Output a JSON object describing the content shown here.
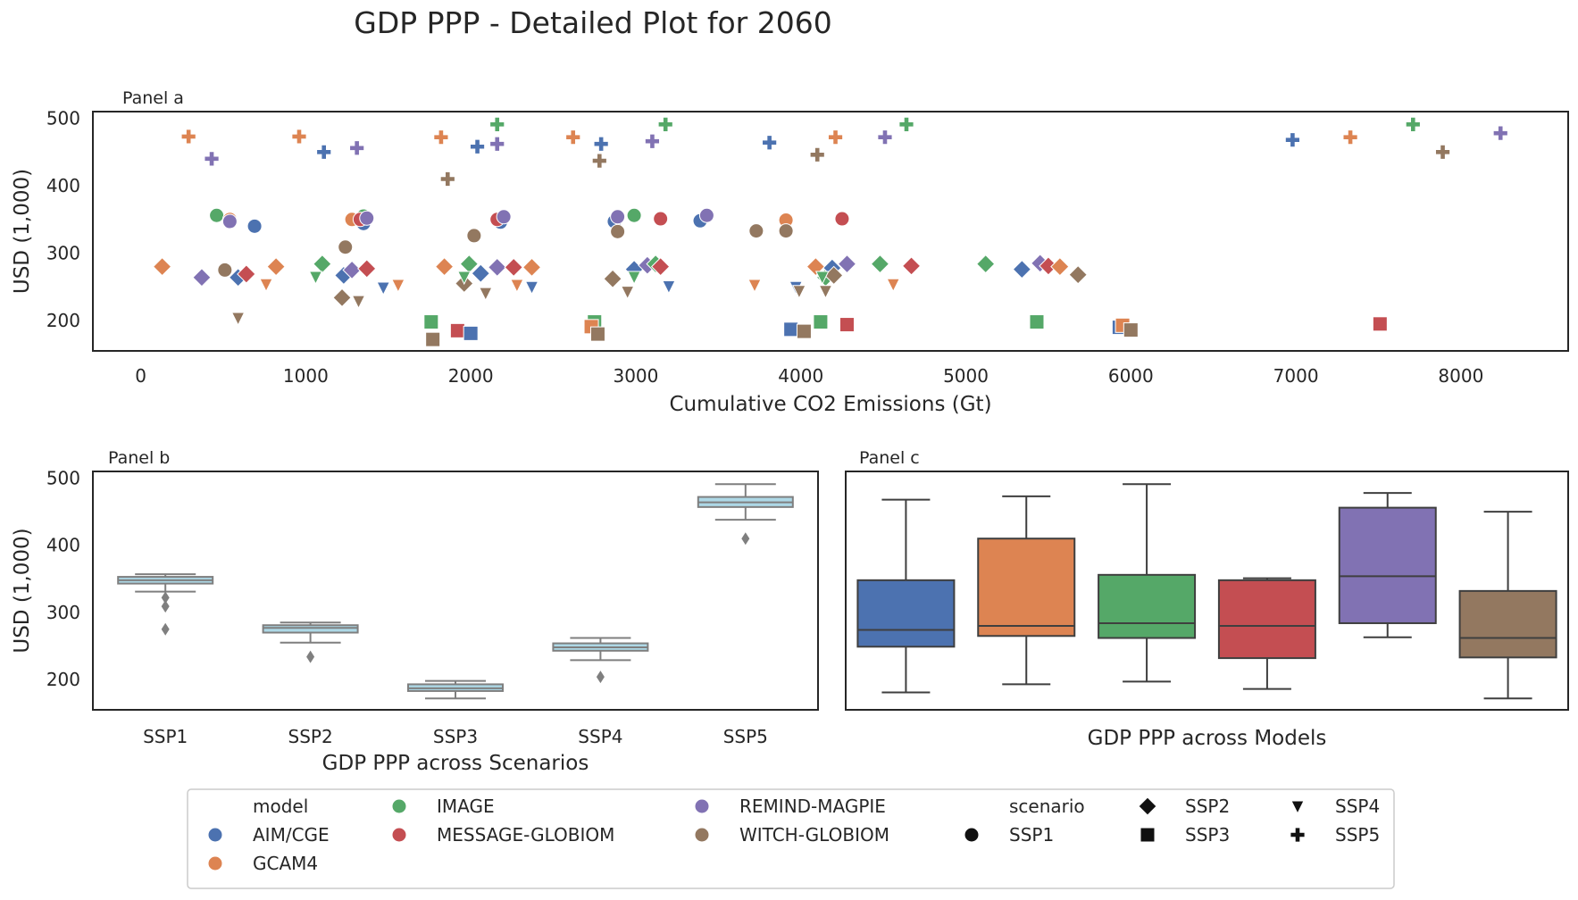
{
  "figure": {
    "suptitle": "GDP PPP - Detailed Plot for 2060"
  },
  "colors": {
    "AIM/CGE": "#4c72b0",
    "GCAM4": "#dd8452",
    "IMAGE": "#55a868",
    "MESSAGE-GLOBIOM": "#c44e52",
    "REMIND-MAGPIE": "#8172b3",
    "WITCH-GLOBIOM": "#937860",
    "scenario_box": "#add8e6",
    "box_line": "#7f7f7f",
    "model_box_line": "#3f3f3f",
    "axes": "#262626"
  },
  "chart_data": [
    {
      "id": "panel_a",
      "type": "scatter",
      "title": "Panel a",
      "xlabel": "Cumulative CO2 Emissions (Gt)",
      "ylabel": "USD (1,000)",
      "xlim": [
        -290,
        8650
      ],
      "ylim": [
        155,
        510
      ],
      "xticks": [
        0,
        1000,
        2000,
        3000,
        4000,
        5000,
        6000,
        7000,
        8000
      ],
      "yticks": [
        200,
        300,
        400,
        500
      ],
      "grid": false,
      "points": [
        {
          "model": "GCAM4",
          "scenario": "SSP5",
          "x": 290,
          "y": 473
        },
        {
          "model": "REMIND-MAGPIE",
          "scenario": "SSP5",
          "x": 430,
          "y": 440
        },
        {
          "model": "GCAM4",
          "scenario": "SSP5",
          "x": 960,
          "y": 473
        },
        {
          "model": "AIM/CGE",
          "scenario": "SSP5",
          "x": 1110,
          "y": 450
        },
        {
          "model": "REMIND-MAGPIE",
          "scenario": "SSP5",
          "x": 1310,
          "y": 456
        },
        {
          "model": "GCAM4",
          "scenario": "SSP5",
          "x": 1820,
          "y": 472
        },
        {
          "model": "WITCH-GLOBIOM",
          "scenario": "SSP5",
          "x": 1860,
          "y": 410
        },
        {
          "model": "IMAGE",
          "scenario": "SSP5",
          "x": 2160,
          "y": 491
        },
        {
          "model": "AIM/CGE",
          "scenario": "SSP5",
          "x": 2040,
          "y": 458
        },
        {
          "model": "REMIND-MAGPIE",
          "scenario": "SSP5",
          "x": 2160,
          "y": 462
        },
        {
          "model": "GCAM4",
          "scenario": "SSP5",
          "x": 2620,
          "y": 472
        },
        {
          "model": "AIM/CGE",
          "scenario": "SSP5",
          "x": 2790,
          "y": 462
        },
        {
          "model": "WITCH-GLOBIOM",
          "scenario": "SSP5",
          "x": 2780,
          "y": 437
        },
        {
          "model": "IMAGE",
          "scenario": "SSP5",
          "x": 3180,
          "y": 491
        },
        {
          "model": "REMIND-MAGPIE",
          "scenario": "SSP5",
          "x": 3100,
          "y": 466
        },
        {
          "model": "AIM/CGE",
          "scenario": "SSP5",
          "x": 3810,
          "y": 464
        },
        {
          "model": "WITCH-GLOBIOM",
          "scenario": "SSP5",
          "x": 4100,
          "y": 446
        },
        {
          "model": "GCAM4",
          "scenario": "SSP5",
          "x": 4210,
          "y": 472
        },
        {
          "model": "REMIND-MAGPIE",
          "scenario": "SSP5",
          "x": 4510,
          "y": 472
        },
        {
          "model": "IMAGE",
          "scenario": "SSP5",
          "x": 4640,
          "y": 491
        },
        {
          "model": "AIM/CGE",
          "scenario": "SSP5",
          "x": 6980,
          "y": 468
        },
        {
          "model": "GCAM4",
          "scenario": "SSP5",
          "x": 7330,
          "y": 472
        },
        {
          "model": "IMAGE",
          "scenario": "SSP5",
          "x": 7710,
          "y": 491
        },
        {
          "model": "WITCH-GLOBIOM",
          "scenario": "SSP5",
          "x": 7890,
          "y": 450
        },
        {
          "model": "REMIND-MAGPIE",
          "scenario": "SSP5",
          "x": 8240,
          "y": 478
        },
        {
          "model": "IMAGE",
          "scenario": "SSP1",
          "x": 460,
          "y": 356
        },
        {
          "model": "GCAM4",
          "scenario": "SSP1",
          "x": 540,
          "y": 350
        },
        {
          "model": "REMIND-MAGPIE",
          "scenario": "SSP1",
          "x": 540,
          "y": 347
        },
        {
          "model": "AIM/CGE",
          "scenario": "SSP1",
          "x": 690,
          "y": 340
        },
        {
          "model": "WITCH-GLOBIOM",
          "scenario": "SSP1",
          "x": 510,
          "y": 275
        },
        {
          "model": "IMAGE",
          "scenario": "SSP1",
          "x": 1350,
          "y": 355
        },
        {
          "model": "GCAM4",
          "scenario": "SSP1",
          "x": 1280,
          "y": 350
        },
        {
          "model": "AIM/CGE",
          "scenario": "SSP1",
          "x": 1350,
          "y": 344
        },
        {
          "model": "MESSAGE-GLOBIOM",
          "scenario": "SSP1",
          "x": 1330,
          "y": 350
        },
        {
          "model": "REMIND-MAGPIE",
          "scenario": "SSP1",
          "x": 1370,
          "y": 352
        },
        {
          "model": "WITCH-GLOBIOM",
          "scenario": "SSP1",
          "x": 1240,
          "y": 309
        },
        {
          "model": "WITCH-GLOBIOM",
          "scenario": "SSP1",
          "x": 2020,
          "y": 326
        },
        {
          "model": "AIM/CGE",
          "scenario": "SSP1",
          "x": 2180,
          "y": 346
        },
        {
          "model": "MESSAGE-GLOBIOM",
          "scenario": "SSP1",
          "x": 2160,
          "y": 350
        },
        {
          "model": "REMIND-MAGPIE",
          "scenario": "SSP1",
          "x": 2200,
          "y": 354
        },
        {
          "model": "AIM/CGE",
          "scenario": "SSP1",
          "x": 2870,
          "y": 347
        },
        {
          "model": "REMIND-MAGPIE",
          "scenario": "SSP1",
          "x": 2890,
          "y": 354
        },
        {
          "model": "IMAGE",
          "scenario": "SSP1",
          "x": 2990,
          "y": 356
        },
        {
          "model": "WITCH-GLOBIOM",
          "scenario": "SSP1",
          "x": 2890,
          "y": 332
        },
        {
          "model": "MESSAGE-GLOBIOM",
          "scenario": "SSP1",
          "x": 3150,
          "y": 351
        },
        {
          "model": "AIM/CGE",
          "scenario": "SSP1",
          "x": 3390,
          "y": 348
        },
        {
          "model": "REMIND-MAGPIE",
          "scenario": "SSP1",
          "x": 3430,
          "y": 356
        },
        {
          "model": "WITCH-GLOBIOM",
          "scenario": "SSP1",
          "x": 3730,
          "y": 333
        },
        {
          "model": "GCAM4",
          "scenario": "SSP1",
          "x": 3910,
          "y": 349
        },
        {
          "model": "WITCH-GLOBIOM",
          "scenario": "SSP1",
          "x": 3910,
          "y": 333
        },
        {
          "model": "MESSAGE-GLOBIOM",
          "scenario": "SSP1",
          "x": 4250,
          "y": 351
        },
        {
          "model": "GCAM4",
          "scenario": "SSP2",
          "x": 130,
          "y": 280
        },
        {
          "model": "REMIND-MAGPIE",
          "scenario": "SSP2",
          "x": 370,
          "y": 264
        },
        {
          "model": "AIM/CGE",
          "scenario": "SSP2",
          "x": 590,
          "y": 264
        },
        {
          "model": "MESSAGE-GLOBIOM",
          "scenario": "SSP2",
          "x": 640,
          "y": 269
        },
        {
          "model": "GCAM4",
          "scenario": "SSP2",
          "x": 820,
          "y": 280
        },
        {
          "model": "IMAGE",
          "scenario": "SSP2",
          "x": 1100,
          "y": 284
        },
        {
          "model": "AIM/CGE",
          "scenario": "SSP2",
          "x": 1230,
          "y": 267
        },
        {
          "model": "REMIND-MAGPIE",
          "scenario": "SSP2",
          "x": 1280,
          "y": 275
        },
        {
          "model": "MESSAGE-GLOBIOM",
          "scenario": "SSP2",
          "x": 1370,
          "y": 277
        },
        {
          "model": "WITCH-GLOBIOM",
          "scenario": "SSP2",
          "x": 1220,
          "y": 234
        },
        {
          "model": "GCAM4",
          "scenario": "SSP2",
          "x": 1840,
          "y": 280
        },
        {
          "model": "WITCH-GLOBIOM",
          "scenario": "SSP2",
          "x": 1960,
          "y": 255
        },
        {
          "model": "IMAGE",
          "scenario": "SSP2",
          "x": 1990,
          "y": 284
        },
        {
          "model": "AIM/CGE",
          "scenario": "SSP2",
          "x": 2060,
          "y": 270
        },
        {
          "model": "REMIND-MAGPIE",
          "scenario": "SSP2",
          "x": 2160,
          "y": 279
        },
        {
          "model": "MESSAGE-GLOBIOM",
          "scenario": "SSP2",
          "x": 2260,
          "y": 279
        },
        {
          "model": "GCAM4",
          "scenario": "SSP2",
          "x": 2370,
          "y": 279
        },
        {
          "model": "WITCH-GLOBIOM",
          "scenario": "SSP2",
          "x": 2860,
          "y": 262
        },
        {
          "model": "AIM/CGE",
          "scenario": "SSP2",
          "x": 2990,
          "y": 276
        },
        {
          "model": "REMIND-MAGPIE",
          "scenario": "SSP2",
          "x": 3070,
          "y": 282
        },
        {
          "model": "IMAGE",
          "scenario": "SSP2",
          "x": 3120,
          "y": 284
        },
        {
          "model": "MESSAGE-GLOBIOM",
          "scenario": "SSP2",
          "x": 3150,
          "y": 280
        },
        {
          "model": "GCAM4",
          "scenario": "SSP2",
          "x": 4090,
          "y": 280
        },
        {
          "model": "IMAGE",
          "scenario": "SSP2",
          "x": 4150,
          "y": 264
        },
        {
          "model": "AIM/CGE",
          "scenario": "SSP2",
          "x": 4190,
          "y": 278
        },
        {
          "model": "WITCH-GLOBIOM",
          "scenario": "SSP2",
          "x": 4200,
          "y": 267
        },
        {
          "model": "REMIND-MAGPIE",
          "scenario": "SSP2",
          "x": 4280,
          "y": 284
        },
        {
          "model": "IMAGE",
          "scenario": "SSP2",
          "x": 4480,
          "y": 284
        },
        {
          "model": "MESSAGE-GLOBIOM",
          "scenario": "SSP2",
          "x": 4670,
          "y": 281
        },
        {
          "model": "IMAGE",
          "scenario": "SSP2",
          "x": 5120,
          "y": 284
        },
        {
          "model": "AIM/CGE",
          "scenario": "SSP2",
          "x": 5340,
          "y": 276
        },
        {
          "model": "REMIND-MAGPIE",
          "scenario": "SSP2",
          "x": 5450,
          "y": 285
        },
        {
          "model": "MESSAGE-GLOBIOM",
          "scenario": "SSP2",
          "x": 5500,
          "y": 281
        },
        {
          "model": "GCAM4",
          "scenario": "SSP2",
          "x": 5570,
          "y": 280
        },
        {
          "model": "WITCH-GLOBIOM",
          "scenario": "SSP2",
          "x": 5680,
          "y": 268
        },
        {
          "model": "IMAGE",
          "scenario": "SSP3",
          "x": 1760,
          "y": 198
        },
        {
          "model": "WITCH-GLOBIOM",
          "scenario": "SSP3",
          "x": 1770,
          "y": 172
        },
        {
          "model": "MESSAGE-GLOBIOM",
          "scenario": "SSP3",
          "x": 1920,
          "y": 185
        },
        {
          "model": "AIM/CGE",
          "scenario": "SSP3",
          "x": 2000,
          "y": 181
        },
        {
          "model": "IMAGE",
          "scenario": "SSP3",
          "x": 2750,
          "y": 198
        },
        {
          "model": "GCAM4",
          "scenario": "SSP3",
          "x": 2730,
          "y": 191
        },
        {
          "model": "WITCH-GLOBIOM",
          "scenario": "SSP3",
          "x": 2770,
          "y": 180
        },
        {
          "model": "AIM/CGE",
          "scenario": "SSP3",
          "x": 3940,
          "y": 187
        },
        {
          "model": "WITCH-GLOBIOM",
          "scenario": "SSP3",
          "x": 4020,
          "y": 184
        },
        {
          "model": "IMAGE",
          "scenario": "SSP3",
          "x": 4120,
          "y": 198
        },
        {
          "model": "MESSAGE-GLOBIOM",
          "scenario": "SSP3",
          "x": 4280,
          "y": 194
        },
        {
          "model": "IMAGE",
          "scenario": "SSP3",
          "x": 5430,
          "y": 198
        },
        {
          "model": "AIM/CGE",
          "scenario": "SSP3",
          "x": 5930,
          "y": 190
        },
        {
          "model": "GCAM4",
          "scenario": "SSP3",
          "x": 5950,
          "y": 193
        },
        {
          "model": "WITCH-GLOBIOM",
          "scenario": "SSP3",
          "x": 6000,
          "y": 186
        },
        {
          "model": "MESSAGE-GLOBIOM",
          "scenario": "SSP3",
          "x": 7510,
          "y": 195
        },
        {
          "model": "WITCH-GLOBIOM",
          "scenario": "SSP4",
          "x": 590,
          "y": 204
        },
        {
          "model": "GCAM4",
          "scenario": "SSP4",
          "x": 760,
          "y": 254
        },
        {
          "model": "IMAGE",
          "scenario": "SSP4",
          "x": 1060,
          "y": 265
        },
        {
          "model": "WITCH-GLOBIOM",
          "scenario": "SSP4",
          "x": 1320,
          "y": 229
        },
        {
          "model": "AIM/CGE",
          "scenario": "SSP4",
          "x": 1470,
          "y": 249
        },
        {
          "model": "GCAM4",
          "scenario": "SSP4",
          "x": 1560,
          "y": 253
        },
        {
          "model": "IMAGE",
          "scenario": "SSP4",
          "x": 1960,
          "y": 265
        },
        {
          "model": "WITCH-GLOBIOM",
          "scenario": "SSP4",
          "x": 2090,
          "y": 241
        },
        {
          "model": "GCAM4",
          "scenario": "SSP4",
          "x": 2280,
          "y": 253
        },
        {
          "model": "AIM/CGE",
          "scenario": "SSP4",
          "x": 2370,
          "y": 250
        },
        {
          "model": "WITCH-GLOBIOM",
          "scenario": "SSP4",
          "x": 2950,
          "y": 243
        },
        {
          "model": "IMAGE",
          "scenario": "SSP4",
          "x": 2990,
          "y": 265
        },
        {
          "model": "AIM/CGE",
          "scenario": "SSP4",
          "x": 3200,
          "y": 251
        },
        {
          "model": "GCAM4",
          "scenario": "SSP4",
          "x": 3720,
          "y": 253
        },
        {
          "model": "AIM/CGE",
          "scenario": "SSP4",
          "x": 3970,
          "y": 250
        },
        {
          "model": "WITCH-GLOBIOM",
          "scenario": "SSP4",
          "x": 3990,
          "y": 244
        },
        {
          "model": "IMAGE",
          "scenario": "SSP4",
          "x": 4130,
          "y": 265
        },
        {
          "model": "WITCH-GLOBIOM",
          "scenario": "SSP4",
          "x": 4150,
          "y": 244
        },
        {
          "model": "GCAM4",
          "scenario": "SSP4",
          "x": 4560,
          "y": 254
        }
      ]
    },
    {
      "id": "panel_b",
      "type": "box",
      "title": "Panel b",
      "xlabel": "GDP PPP across Scenarios",
      "ylabel": "USD (1,000)",
      "ylim": [
        155,
        510
      ],
      "yticks": [
        200,
        300,
        400,
        500
      ],
      "categories": [
        "SSP1",
        "SSP2",
        "SSP3",
        "SSP4",
        "SSP5"
      ],
      "boxes": [
        {
          "whislo": 331,
          "q1": 343,
          "med": 348,
          "q3": 353,
          "whishi": 357,
          "fliers": [
            322,
            309,
            275
          ]
        },
        {
          "whislo": 255,
          "q1": 270,
          "med": 277,
          "q3": 281,
          "whishi": 285,
          "fliers": [
            234
          ]
        },
        {
          "whislo": 172,
          "q1": 183,
          "med": 187,
          "q3": 193,
          "whishi": 198,
          "fliers": []
        },
        {
          "whislo": 229,
          "q1": 243,
          "med": 248,
          "q3": 254,
          "whishi": 262,
          "fliers": [
            204
          ]
        },
        {
          "whislo": 438,
          "q1": 457,
          "med": 464,
          "q3": 472,
          "whishi": 491,
          "fliers": [
            410
          ]
        }
      ]
    },
    {
      "id": "panel_c",
      "type": "box",
      "title": "Panel c",
      "xlabel": "GDP PPP across Models",
      "ylim": [
        155,
        510
      ],
      "categories": [
        "AIM/CGE",
        "GCAM4",
        "IMAGE",
        "MESSAGE-GLOBIOM",
        "REMIND-MAGPIE",
        "WITCH-GLOBIOM"
      ],
      "boxes": [
        {
          "whislo": 181,
          "q1": 249,
          "med": 274,
          "q3": 348,
          "whishi": 468,
          "fliers": []
        },
        {
          "whislo": 193,
          "q1": 265,
          "med": 280,
          "q3": 410,
          "whishi": 473,
          "fliers": []
        },
        {
          "whislo": 197,
          "q1": 262,
          "med": 284,
          "q3": 356,
          "whishi": 491,
          "fliers": []
        },
        {
          "whislo": 186,
          "q1": 232,
          "med": 280,
          "q3": 348,
          "whishi": 351,
          "fliers": []
        },
        {
          "whislo": 263,
          "q1": 284,
          "med": 354,
          "q3": 456,
          "whishi": 478,
          "fliers": []
        },
        {
          "whislo": 172,
          "q1": 233,
          "med": 262,
          "q3": 332,
          "whishi": 450,
          "fliers": []
        }
      ]
    }
  ],
  "legend": {
    "model_title": "model",
    "models": [
      "AIM/CGE",
      "GCAM4",
      "IMAGE",
      "MESSAGE-GLOBIOM",
      "REMIND-MAGPIE",
      "WITCH-GLOBIOM"
    ],
    "scenario_title": "scenario",
    "scenarios": [
      "SSP1",
      "SSP2",
      "SSP3",
      "SSP4",
      "SSP5"
    ]
  }
}
